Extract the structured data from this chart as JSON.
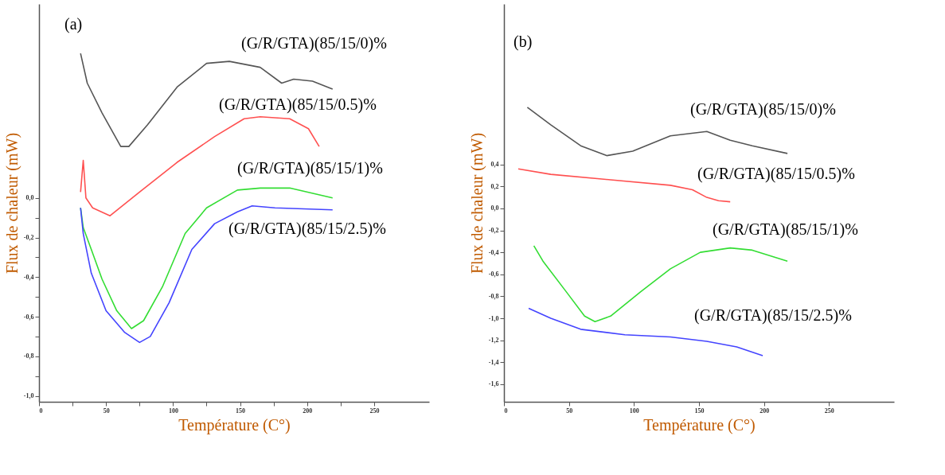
{
  "chart_data": [
    {
      "type": "line",
      "xlabel": "Température (C°)",
      "ylabel": "Flux de chaleur (mW)",
      "grid": false,
      "legend": false,
      "marker": "none",
      "line_style": "solid",
      "xlim": [
        0,
        291
      ],
      "ylim": [
        -1.03,
        0.98
      ],
      "xticks": [
        0,
        {
          "value": 25,
          "label": null
        },
        50,
        {
          "value": 75,
          "label": null
        },
        100,
        {
          "value": 125,
          "label": null
        },
        150,
        {
          "value": 175,
          "label": null
        },
        200,
        {
          "value": 225,
          "label": null
        },
        250
      ],
      "yticks": [
        {
          "value": -1.0,
          "label": "-1,0"
        },
        {
          "value": -0.9,
          "label": null
        },
        {
          "value": -0.8,
          "label": "-0,8"
        },
        {
          "value": -0.7,
          "label": null
        },
        {
          "value": -0.6,
          "label": "-0,6"
        },
        {
          "value": -0.5,
          "label": null
        },
        {
          "value": -0.4,
          "label": "-0,4"
        },
        {
          "value": -0.3,
          "label": null
        },
        {
          "value": -0.2,
          "label": "-0,2"
        },
        {
          "value": -0.1,
          "label": null
        },
        {
          "value": 0.0,
          "label": "0,0"
        }
      ],
      "series": [
        {
          "color": "#555555",
          "x": [
            31,
            36,
            47,
            61,
            67,
            81,
            103,
            125,
            142,
            165,
            181,
            190,
            204,
            219
          ],
          "values": [
            0.73,
            0.58,
            0.43,
            0.26,
            0.26,
            0.37,
            0.56,
            0.68,
            0.69,
            0.66,
            0.58,
            0.6,
            0.59,
            0.55
          ]
        },
        {
          "color": "#ff5050",
          "x": [
            31,
            33,
            35,
            40,
            53,
            75,
            103,
            131,
            153,
            165,
            187,
            201,
            209
          ],
          "values": [
            0.03,
            0.19,
            0.0,
            -0.05,
            -0.09,
            0.03,
            0.18,
            0.31,
            0.4,
            0.41,
            0.4,
            0.35,
            0.26
          ]
        },
        {
          "color": "#33dd33",
          "x": [
            31,
            33,
            39,
            47,
            58,
            69,
            78,
            92,
            109,
            125,
            148,
            165,
            187,
            219
          ],
          "values": [
            -0.05,
            -0.15,
            -0.26,
            -0.41,
            -0.57,
            -0.66,
            -0.62,
            -0.45,
            -0.18,
            -0.05,
            0.04,
            0.05,
            0.05,
            0.0
          ]
        },
        {
          "color": "#4444ff",
          "x": [
            31,
            33,
            39,
            50,
            64,
            75,
            83,
            97,
            114,
            131,
            148,
            159,
            176,
            219
          ],
          "values": [
            -0.05,
            -0.18,
            -0.38,
            -0.57,
            -0.68,
            -0.73,
            -0.7,
            -0.53,
            -0.26,
            -0.13,
            -0.07,
            -0.04,
            -0.05,
            -0.06
          ]
        }
      ],
      "annotations": [
        "(a)",
        "(G/R/GTA)(85/15/0)%",
        "(G/R/GTA)(85/15/0.5)%",
        "(G/R/GTA)(85/15/1)%",
        "(G/R/GTA)(85/15/2.5)%"
      ]
    },
    {
      "type": "line",
      "xlabel": "Température (C°)",
      "ylabel": "Flux de chaleur (mW)",
      "grid": false,
      "legend": false,
      "marker": "none",
      "line_style": "solid",
      "xlim": [
        0,
        300
      ],
      "ylim": [
        -1.76,
        1.86
      ],
      "xticks": [
        0,
        50,
        100,
        150,
        200,
        250
      ],
      "yticks": [
        {
          "value": -1.6,
          "label": "-1,6"
        },
        {
          "value": -1.4,
          "label": "-1,4"
        },
        {
          "value": -1.2,
          "label": "-1,2"
        },
        {
          "value": -1.0,
          "label": "-1,0"
        },
        {
          "value": -0.8,
          "label": "-0,8"
        },
        {
          "value": -0.6,
          "label": "-0,6"
        },
        {
          "value": -0.4,
          "label": "-0,4"
        },
        {
          "value": -0.2,
          "label": "-0,2"
        },
        {
          "value": 0.0,
          "label": "0,0"
        },
        {
          "value": 0.2,
          "label": "0,2"
        },
        {
          "value": 0.4,
          "label": "0,4"
        }
      ],
      "series": [
        {
          "color": "#555555",
          "x": [
            18,
            36,
            59,
            79,
            99,
            128,
            156,
            174,
            191,
            218
          ],
          "values": [
            0.92,
            0.76,
            0.57,
            0.48,
            0.52,
            0.66,
            0.7,
            0.62,
            0.57,
            0.5
          ]
        },
        {
          "color": "#ff5050",
          "x": [
            11,
            36,
            82,
            128,
            145,
            156,
            165,
            174
          ],
          "values": [
            0.36,
            0.31,
            0.26,
            0.21,
            0.17,
            0.1,
            0.07,
            0.06
          ]
        },
        {
          "color": "#33dd33",
          "x": [
            23,
            30,
            48,
            62,
            70,
            82,
            105,
            128,
            151,
            174,
            191,
            218
          ],
          "values": [
            -0.34,
            -0.48,
            -0.76,
            -0.98,
            -1.03,
            -0.98,
            -0.76,
            -0.55,
            -0.4,
            -0.36,
            -0.38,
            -0.48
          ]
        },
        {
          "color": "#4444ff",
          "x": [
            19,
            36,
            59,
            93,
            128,
            156,
            179,
            199
          ],
          "values": [
            -0.91,
            -1.0,
            -1.1,
            -1.15,
            -1.17,
            -1.21,
            -1.26,
            -1.34
          ]
        }
      ],
      "annotations": [
        "(b)",
        "(G/R/GTA)(85/15/0)%",
        "(G/R/GTA)(85/15/0.5)%",
        "(G/R/GTA)(85/15/1)%",
        "(G/R/GTA)(85/15/2.5)%"
      ]
    }
  ]
}
